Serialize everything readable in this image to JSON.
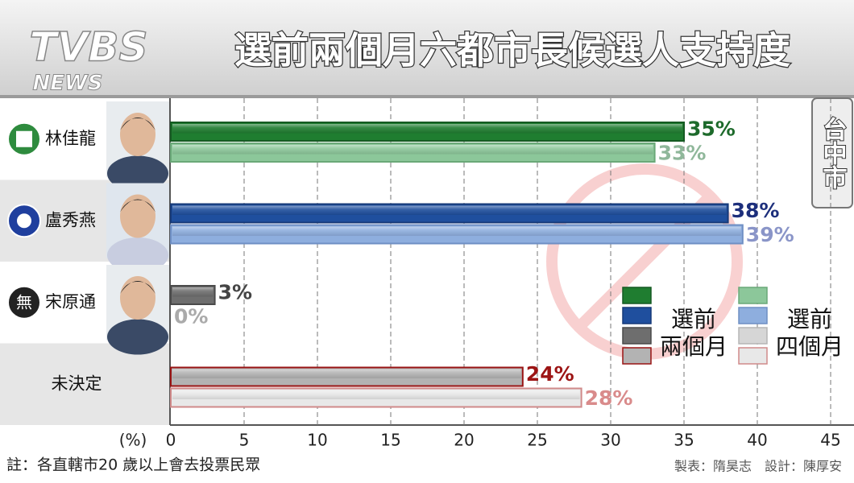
{
  "chart_data": {
    "type": "bar",
    "orientation": "horizontal",
    "title": "選前兩個月六都市長候選人支持度",
    "logo": "TVBS",
    "logo_sub": "NEWS",
    "region": "台中市",
    "independent_badge": "無",
    "x_label": "(%)",
    "note": "註：各直轄市20 歲以上會去投票民眾",
    "credit": "製表：隋昊志　設計：陳厚安",
    "categories": [
      "林佳龍",
      "盧秀燕",
      "宋原通",
      "未決定"
    ],
    "series": [
      {
        "name": "選前兩個月",
        "colors": [
          "#1f7d30",
          "#1f4f9e",
          "#6e6e6e",
          "#b3b3b3"
        ],
        "edge_colors": [
          "#155a22",
          "#173a78",
          "#4a4a4a",
          "#9a1414"
        ],
        "label_colors": [
          "#1d6a2b",
          "#1d2f7c",
          "#444444",
          "#9c1414"
        ],
        "values": [
          35,
          38,
          3,
          24
        ],
        "value_labels": [
          "35%",
          "38%",
          "3%",
          "24%"
        ]
      },
      {
        "name": "選前四個月",
        "colors": [
          "#8cc79a",
          "#8eaede",
          "#d6d6d6",
          "#e8e8e8"
        ],
        "edge_colors": [
          "#6aa878",
          "#6f8fc4",
          "#b5b5b5",
          "#d08a8a"
        ],
        "label_colors": [
          "#8fb79a",
          "#8a95c8",
          "#aaaaaa",
          "#d98b8b"
        ],
        "values": [
          33,
          39,
          0,
          28
        ],
        "value_labels": [
          "33%",
          "39%",
          "0%",
          "28%"
        ]
      }
    ],
    "xlim": [
      0,
      45
    ],
    "xticks": [
      0,
      5,
      10,
      15,
      20,
      25,
      30,
      35,
      40,
      45
    ],
    "grid": true
  }
}
